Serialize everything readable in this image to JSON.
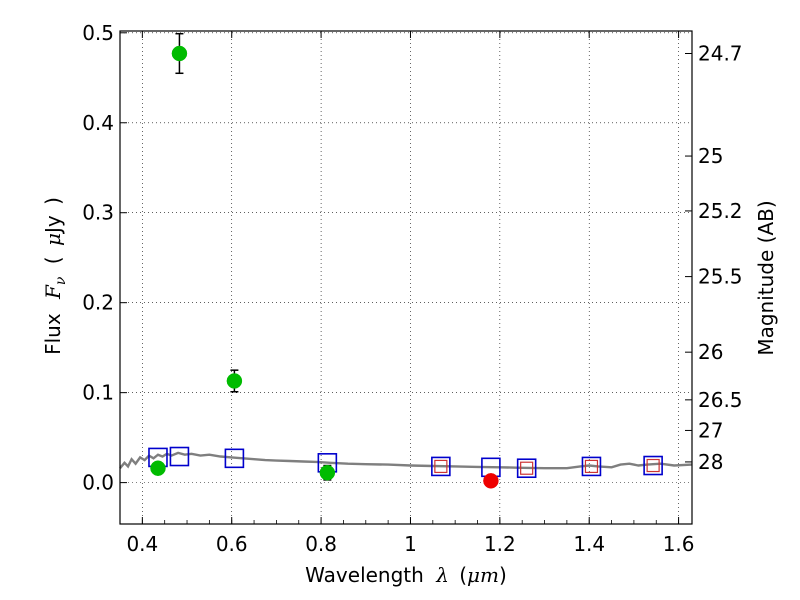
{
  "chart_data": {
    "type": "scatter",
    "title": "",
    "xlabel": {
      "prefix": "Wavelength",
      "symbol": "λ",
      "open": "(",
      "unit": "μm",
      "close": ")"
    },
    "ylabel": {
      "prefix": "Flux",
      "symbol": "F",
      "sub": "ν",
      "open": "(",
      "unit": "μ",
      "unit2": "Jy",
      "close": ")"
    },
    "y2label": "Magnitude (AB)",
    "xlim": [
      0.35,
      1.63
    ],
    "ylim": [
      -0.046,
      0.502
    ],
    "grid": true,
    "xticks": [
      0.4,
      0.6,
      0.8,
      1.0,
      1.2,
      1.4,
      1.6
    ],
    "xtick_labels": [
      "0.4",
      "0.6",
      "0.8",
      "1",
      "1.2",
      "1.4",
      "1.6"
    ],
    "yticks": [
      0.0,
      0.1,
      0.2,
      0.3,
      0.4,
      0.5
    ],
    "ytick_labels": [
      "0.0",
      "0.1",
      "0.2",
      "0.3",
      "0.4",
      "0.5"
    ],
    "mag_ticks": [
      {
        "label": "24.7",
        "flux": 0.477
      },
      {
        "label": "25",
        "flux": 0.363
      },
      {
        "label": "25.2",
        "flux": 0.302
      },
      {
        "label": "25.5",
        "flux": 0.229
      },
      {
        "label": "26",
        "flux": 0.145
      },
      {
        "label": "26.5",
        "flux": 0.092
      },
      {
        "label": "27",
        "flux": 0.058
      },
      {
        "label": "28",
        "flux": 0.023
      }
    ],
    "series": [
      {
        "name": "observed (green)",
        "color": "#00bb00",
        "points": [
          {
            "x": 0.435,
            "y": 0.016,
            "err": 0.006
          },
          {
            "x": 0.483,
            "y": 0.477,
            "err": 0.022
          },
          {
            "x": 0.606,
            "y": 0.113,
            "err": 0.012
          },
          {
            "x": 0.814,
            "y": 0.011,
            "err": 0.008
          }
        ]
      },
      {
        "name": "observed (red)",
        "color": "#ee0000",
        "points": [
          {
            "x": 1.18,
            "y": 0.002,
            "err": 0.004
          }
        ]
      },
      {
        "name": "model photometry (blue squares)",
        "color": "#0000cc",
        "points": [
          {
            "x": 0.435,
            "y": 0.028
          },
          {
            "x": 0.483,
            "y": 0.029
          },
          {
            "x": 0.606,
            "y": 0.027
          },
          {
            "x": 0.814,
            "y": 0.022
          },
          {
            "x": 1.068,
            "y": 0.018
          },
          {
            "x": 1.18,
            "y": 0.017
          },
          {
            "x": 1.26,
            "y": 0.016
          },
          {
            "x": 1.405,
            "y": 0.018
          },
          {
            "x": 1.543,
            "y": 0.019
          }
        ]
      },
      {
        "name": "model photometry (red squares)",
        "color": "#cc3333",
        "points": [
          {
            "x": 1.068,
            "y": 0.018
          },
          {
            "x": 1.26,
            "y": 0.016
          },
          {
            "x": 1.405,
            "y": 0.018
          },
          {
            "x": 1.543,
            "y": 0.019
          }
        ]
      },
      {
        "name": "model spectrum",
        "color": "#7f7f7f",
        "line": [
          [
            0.35,
            0.016
          ],
          [
            0.36,
            0.022
          ],
          [
            0.368,
            0.018
          ],
          [
            0.376,
            0.026
          ],
          [
            0.385,
            0.021
          ],
          [
            0.395,
            0.028
          ],
          [
            0.405,
            0.025
          ],
          [
            0.415,
            0.03
          ],
          [
            0.425,
            0.027
          ],
          [
            0.435,
            0.031
          ],
          [
            0.445,
            0.029
          ],
          [
            0.455,
            0.032
          ],
          [
            0.465,
            0.03
          ],
          [
            0.48,
            0.033
          ],
          [
            0.495,
            0.031
          ],
          [
            0.51,
            0.032
          ],
          [
            0.53,
            0.03
          ],
          [
            0.55,
            0.031
          ],
          [
            0.575,
            0.029
          ],
          [
            0.6,
            0.028
          ],
          [
            0.625,
            0.027
          ],
          [
            0.65,
            0.026
          ],
          [
            0.675,
            0.025
          ],
          [
            0.7,
            0.0245
          ],
          [
            0.73,
            0.024
          ],
          [
            0.76,
            0.0235
          ],
          [
            0.79,
            0.023
          ],
          [
            0.82,
            0.022
          ],
          [
            0.86,
            0.021
          ],
          [
            0.9,
            0.0205
          ],
          [
            0.95,
            0.02
          ],
          [
            1.0,
            0.019
          ],
          [
            1.05,
            0.0185
          ],
          [
            1.1,
            0.018
          ],
          [
            1.15,
            0.0175
          ],
          [
            1.2,
            0.017
          ],
          [
            1.25,
            0.0165
          ],
          [
            1.3,
            0.016
          ],
          [
            1.35,
            0.016
          ],
          [
            1.38,
            0.018
          ],
          [
            1.4,
            0.019
          ],
          [
            1.42,
            0.018
          ],
          [
            1.45,
            0.017
          ],
          [
            1.47,
            0.02
          ],
          [
            1.49,
            0.021
          ],
          [
            1.51,
            0.019
          ],
          [
            1.53,
            0.02
          ],
          [
            1.56,
            0.021
          ],
          [
            1.59,
            0.019
          ],
          [
            1.63,
            0.02
          ]
        ]
      }
    ]
  }
}
